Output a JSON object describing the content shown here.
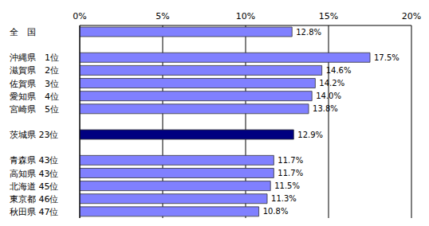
{
  "chart_data": {
    "type": "bar",
    "orientation": "horizontal",
    "categories": [
      "全　国",
      null,
      "沖縄県　1位",
      "滋賀県　2位",
      "佐賀県　3位",
      "愛知県　4位",
      "宮崎県　5位",
      null,
      "茨城県 23位",
      null,
      "青森県 43位",
      "高知県 43位",
      "北海道 45位",
      "東京都 46位",
      "秋田県 47位"
    ],
    "values": [
      12.8,
      null,
      17.5,
      14.6,
      14.2,
      14.0,
      13.8,
      null,
      12.9,
      null,
      11.7,
      11.7,
      11.5,
      11.3,
      10.8
    ],
    "value_labels": [
      "12.8%",
      null,
      "17.5%",
      "14.6%",
      "14.2%",
      "14.0%",
      "13.8%",
      null,
      "12.9%",
      null,
      "11.7%",
      "11.7%",
      "11.5%",
      "11.3%",
      "10.8%"
    ],
    "colors": [
      "#8080ff",
      null,
      "#8080ff",
      "#8080ff",
      "#8080ff",
      "#8080ff",
      "#8080ff",
      null,
      "#000080",
      null,
      "#8080ff",
      "#8080ff",
      "#8080ff",
      "#8080ff",
      "#8080ff"
    ],
    "xlim": [
      0,
      20
    ],
    "xticks": [
      {
        "value": 0,
        "label": "0%"
      },
      {
        "value": 5,
        "label": "5%"
      },
      {
        "value": 10,
        "label": "10%"
      },
      {
        "value": 15,
        "label": "15%"
      },
      {
        "value": 20,
        "label": "20%"
      }
    ],
    "grid": true,
    "data_labels": true
  }
}
